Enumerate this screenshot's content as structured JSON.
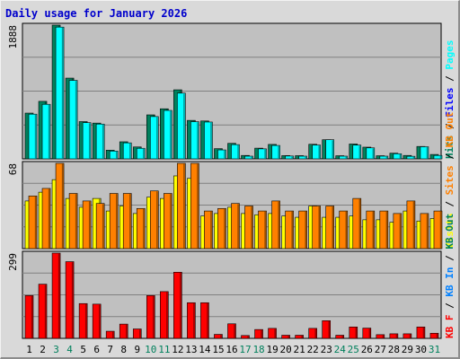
{
  "chart_data": {
    "type": "bar",
    "title": "Daily usage for January 2026",
    "categories": [
      "1",
      "2",
      "3",
      "4",
      "5",
      "6",
      "7",
      "8",
      "9",
      "10",
      "11",
      "12",
      "13",
      "14",
      "15",
      "16",
      "17",
      "18",
      "19",
      "20",
      "21",
      "22",
      "23",
      "24",
      "25",
      "26",
      "27",
      "28",
      "29",
      "30",
      "31"
    ],
    "weekend_days": [
      "3",
      "4",
      "10",
      "11",
      "17",
      "18",
      "24",
      "25",
      "31"
    ],
    "day_colors": {
      "weekday": "#000000",
      "weekend": "#00805c"
    },
    "panels": [
      {
        "id": "hits",
        "ymax_label": "1888",
        "ylim": [
          0,
          1888
        ],
        "side_labels": [
          {
            "text": "Hits",
            "color": "#00805c"
          },
          {
            "text": " / ",
            "color": "#000000"
          },
          {
            "text": "Files",
            "color": "#0000ff"
          },
          {
            "text": " / ",
            "color": "#000000"
          },
          {
            "text": "Pages",
            "color": "#00ffff"
          }
        ],
        "series": [
          {
            "name": "Hits",
            "color": "#00805c",
            "values": [
              646,
              812,
              1888,
              1140,
              526,
              505,
              123,
              241,
              168,
              621,
              707,
              975,
              543,
              535,
              144,
              219,
              48,
              151,
              204,
              46,
              45,
              206,
              270,
              44,
              210,
              165,
              44,
              80,
              48,
              175,
              62
            ]
          },
          {
            "name": "Files",
            "color": "#00ffff",
            "values": [
              631,
              770,
              1860,
              1108,
              511,
              491,
              110,
              226,
              149,
              597,
              684,
              928,
              525,
              520,
              126,
              201,
              38,
              141,
              189,
              40,
              38,
              195,
              270,
              38,
              194,
              155,
              38,
              72,
              36,
              171,
              48
            ]
          }
        ]
      },
      {
        "id": "visits",
        "ymax_label": "68",
        "ylim": [
          0,
          68
        ],
        "side_labels": [
          {
            "text": "Visits",
            "color": "#ffff00"
          },
          {
            "text": " / ",
            "color": "#000000"
          },
          {
            "text": "Sites",
            "color": "#ff8000"
          },
          {
            "text": " / ",
            "color": "#000000"
          },
          {
            "text": "KB Out",
            "color": "#ff8000"
          }
        ],
        "series": [
          {
            "name": "Visits",
            "color": "#ffff00",
            "values": [
              38,
              45,
              55,
              40,
              33,
              40,
              30,
              34,
              28,
              41,
              40,
              58,
              56,
              26,
              28,
              33,
              28,
              27,
              28,
              26,
              25,
              34,
              25,
              25,
              26,
              23,
              23,
              21,
              30,
              22,
              24
            ]
          },
          {
            "name": "Sites",
            "color": "#ff8000",
            "values": [
              42,
              48,
              68,
              44,
              38,
              36,
              44,
              44,
              32,
              46,
              44,
              68,
              68,
              30,
              32,
              36,
              34,
              30,
              38,
              30,
              30,
              34,
              34,
              30,
              40,
              30,
              30,
              28,
              38,
              28,
              30
            ]
          }
        ]
      },
      {
        "id": "kbytes",
        "ymax_label": "299",
        "ylim": [
          0,
          299
        ],
        "side_labels": [
          {
            "text": "KB F",
            "color": "#ff0000"
          },
          {
            "text": " / ",
            "color": "#000000"
          },
          {
            "text": "KB In",
            "color": "#0080ff"
          },
          {
            "text": " / ",
            "color": "#000000"
          },
          {
            "text": "KB Out",
            "color": "#00805c"
          }
        ],
        "series": [
          {
            "name": "KB F",
            "color": "#ff0000",
            "values": [
              150,
              190,
              299,
              269,
              122,
              120,
              25,
              50,
              33,
              150,
              164,
              232,
              125,
              125,
              14,
              51,
              10,
              31,
              35,
              11,
              11,
              35,
              62,
              11,
              40,
              36,
              13,
              16,
              16,
              40,
              18
            ]
          }
        ]
      }
    ]
  }
}
